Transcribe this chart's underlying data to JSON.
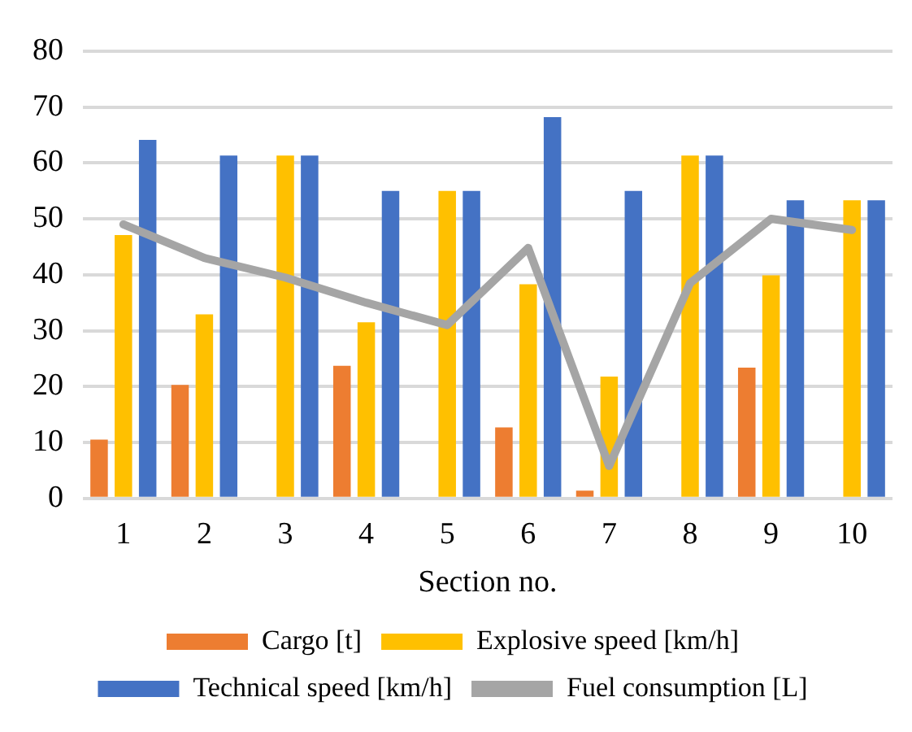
{
  "chart_data": {
    "type": "bar",
    "xlabel": "Section no.",
    "categories": [
      "1",
      "2",
      "3",
      "4",
      "5",
      "6",
      "7",
      "8",
      "9",
      "10"
    ],
    "series": [
      {
        "name": "Cargo [t]",
        "color": "#ed7d31",
        "values": [
          10.5,
          20.3,
          null,
          23.7,
          null,
          12.7,
          1.4,
          null,
          23.4,
          null
        ]
      },
      {
        "name": "Explosive speed [km/h]",
        "color": "#ffc000",
        "values": [
          47.1,
          32.9,
          61.3,
          31.5,
          55,
          38.3,
          21.8,
          61.3,
          39.9,
          53.3
        ]
      },
      {
        "name": "Technical speed [km/h]",
        "color": "#4472c4",
        "values": [
          64.1,
          61.3,
          61.3,
          55,
          55,
          68.2,
          55,
          61.3,
          53.3,
          53.3
        ]
      },
      {
        "name": "Fuel consumption [L]",
        "type": "line",
        "color": "#a5a5a5",
        "values": [
          49,
          43,
          39.5,
          35,
          31,
          44.8,
          5.8,
          38.5,
          50,
          48
        ]
      }
    ],
    "ylim": [
      0,
      80
    ],
    "yticks": [
      0,
      10,
      20,
      30,
      40,
      50,
      60,
      70,
      80
    ],
    "grid": "y",
    "legend": "bottom",
    "marker": "none"
  }
}
